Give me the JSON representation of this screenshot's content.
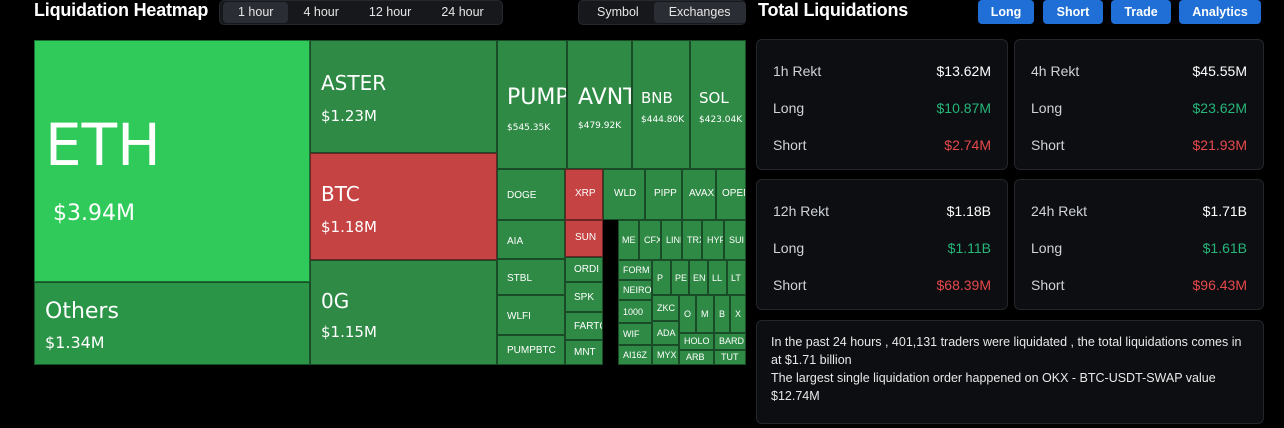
{
  "heatmap": {
    "title": "Liquidation Heatmap",
    "time_tabs": [
      "1 hour",
      "4 hour",
      "12 hour",
      "24 hour"
    ],
    "view_tabs": [
      "Symbol",
      "Exchanges"
    ],
    "tiles": {
      "eth": {
        "sym": "ETH",
        "val": "$3.94M"
      },
      "others": {
        "sym": "Others",
        "val": "$1.34M"
      },
      "aster": {
        "sym": "ASTER",
        "val": "$1.23M"
      },
      "btc": {
        "sym": "BTC",
        "val": "$1.18M"
      },
      "og": {
        "sym": "0G",
        "val": "$1.15M"
      },
      "pump": {
        "sym": "PUMP",
        "val": "$545.35K"
      },
      "avnt": {
        "sym": "AVNT",
        "val": "$479.92K"
      },
      "bnb": {
        "sym": "BNB",
        "val": "$444.80K"
      },
      "sol": {
        "sym": "SOL",
        "val": "$423.04K"
      },
      "doge": {
        "sym": "DOGE"
      },
      "aia": {
        "sym": "AIA"
      },
      "stbl": {
        "sym": "STBL"
      },
      "wlfi": {
        "sym": "WLFI"
      },
      "pumpbtc": {
        "sym": "PUMPBTC"
      },
      "xrp": {
        "sym": "XRP"
      },
      "sun": {
        "sym": "SUN"
      },
      "ordi": {
        "sym": "ORDI"
      },
      "spk": {
        "sym": "SPK"
      },
      "fartco": {
        "sym": "FARTCO"
      },
      "mnt": {
        "sym": "MNT"
      },
      "wld": {
        "sym": "WLD"
      },
      "pipp": {
        "sym": "PIPP"
      },
      "avax": {
        "sym": "AVAX"
      },
      "ope": {
        "sym": "OPEN"
      },
      "me": {
        "sym": "ME"
      },
      "cf": {
        "sym": "CFX"
      },
      "li": {
        "sym": "LINK"
      },
      "tr": {
        "sym": "TRX"
      },
      "hy": {
        "sym": "HYPE"
      },
      "su": {
        "sym": "SUI"
      },
      "form": {
        "sym": "FORM"
      },
      "neiro": {
        "sym": "NEIRO"
      },
      "k1000": {
        "sym": "1000"
      },
      "wif": {
        "sym": "WIF"
      },
      "ai16": {
        "sym": "AI16Z"
      },
      "p1": {
        "sym": "P"
      },
      "pe": {
        "sym": "PE"
      },
      "en": {
        "sym": "EN"
      },
      "ll": {
        "sym": "LL"
      },
      "lt": {
        "sym": "LT"
      },
      "zkc": {
        "sym": "ZKC"
      },
      "ada": {
        "sym": "ADA"
      },
      "myx": {
        "sym": "MYX"
      },
      "o": {
        "sym": "O"
      },
      "m": {
        "sym": "M"
      },
      "b": {
        "sym": "B"
      },
      "x": {
        "sym": "X"
      },
      "holo": {
        "sym": "HOLO"
      },
      "bard": {
        "sym": "BARD"
      },
      "arb": {
        "sym": "ARB"
      },
      "tut": {
        "sym": "TUT"
      }
    }
  },
  "totals": {
    "title": "Total Liquidations",
    "buttons": [
      "Long",
      "Short",
      "Trade",
      "Analytics"
    ],
    "cards": [
      {
        "label": "1h Rekt",
        "total": "$13.62M",
        "long_label": "Long",
        "long": "$10.87M",
        "short_label": "Short",
        "short": "$2.74M"
      },
      {
        "label": "4h Rekt",
        "total": "$45.55M",
        "long_label": "Long",
        "long": "$23.62M",
        "short_label": "Short",
        "short": "$21.93M"
      },
      {
        "label": "12h Rekt",
        "total": "$1.18B",
        "long_label": "Long",
        "long": "$1.11B",
        "short_label": "Short",
        "short": "$68.39M"
      },
      {
        "label": "24h Rekt",
        "total": "$1.71B",
        "long_label": "Long",
        "long": "$1.61B",
        "short_label": "Short",
        "short": "$96.43M"
      }
    ],
    "summary_line1": "In the past 24 hours , 401,131 traders were liquidated , the total liquidations comes in at $1.71 billion",
    "summary_line2": "The largest single liquidation order happened on OKX - BTC-USDT-SWAP value $12.74M"
  },
  "colors": {
    "long": "#26b67a",
    "short": "#e5484d",
    "accent": "#1f6fd6",
    "heat_green": "#2fca59",
    "heat_red": "#c64344"
  }
}
